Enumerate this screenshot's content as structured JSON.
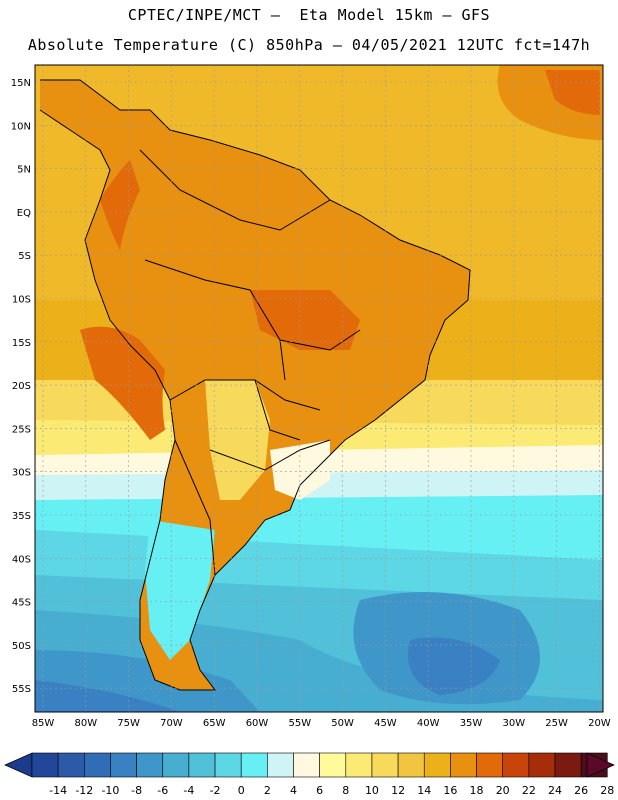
{
  "header": {
    "line1": "CPTEC/INPE/MCT –  Eta Model 15km – GFS",
    "line2": "Absolute Temperature (C) 850hPa – 04/05/2021 12UTC fct=147h"
  },
  "axes": {
    "lat_labels": [
      "15N",
      "10N",
      "5N",
      "EQ",
      "5S",
      "10S",
      "15S",
      "20S",
      "25S",
      "30S",
      "35S",
      "40S",
      "45S",
      "50S",
      "55S"
    ],
    "lon_labels": [
      "85W",
      "80W",
      "75W",
      "70W",
      "65W",
      "60W",
      "55W",
      "50W",
      "45W",
      "40W",
      "35W",
      "30W",
      "25W",
      "20W"
    ]
  },
  "colorbar": {
    "ticks": [
      "-14",
      "-12",
      "-10",
      "-8",
      "-6",
      "-4",
      "-2",
      "0",
      "2",
      "4",
      "6",
      "8",
      "10",
      "12",
      "14",
      "16",
      "18",
      "20",
      "22",
      "24",
      "26",
      "28"
    ],
    "colors": [
      "#22479a",
      "#2a5aa8",
      "#316cb7",
      "#3a81c3",
      "#3f97c9",
      "#47aed1",
      "#51c1da",
      "#5dd6e5",
      "#66f0f3",
      "#cff4f6",
      "#fff9e0",
      "#fffa9a",
      "#fbeb74",
      "#f7da5c",
      "#f1c53f",
      "#ecb118",
      "#e89010",
      "#e26a09",
      "#c9440b",
      "#a62d0a",
      "#7a1a10",
      "#4c0d18"
    ],
    "low_arrow_color": "#1b3b8c",
    "high_arrow_color": "#5a0a28"
  },
  "map_colors": {
    "ocean_tropical": "#f0b92a",
    "ocean_warm": "#ecb118",
    "ocean_mid": "#fbeb74",
    "ocean_light": "#fff9e0",
    "ocean_pale": "#cff4f6",
    "ocean_cyan": "#66f0f3",
    "ocean_teal": "#51c1da",
    "ocean_blue": "#3f97c9",
    "land_main": "#e89010",
    "land_hot": "#e26a09",
    "land_pale": "#f7da5c",
    "borders": "#000000"
  }
}
